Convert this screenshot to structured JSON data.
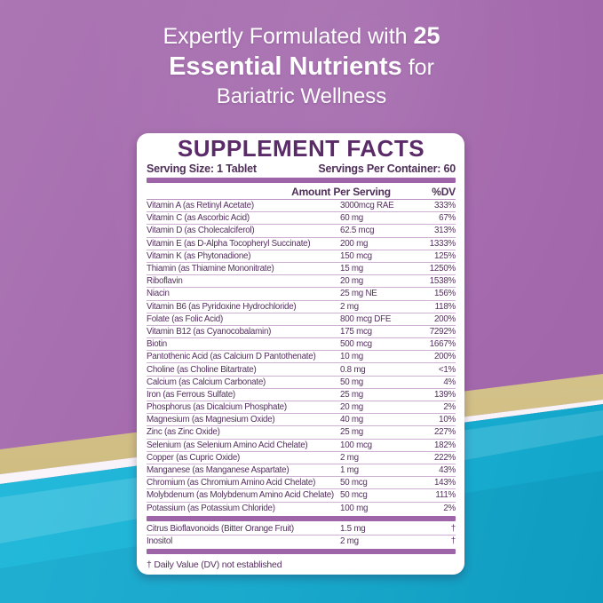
{
  "header": {
    "line1_regular": "Expertly Formulated with ",
    "line1_bold": "25",
    "line2_bold": "Essential Nutrients",
    "line2_regular": " for",
    "line3": "Bariatric Wellness"
  },
  "panel": {
    "title": "SUPPLEMENT FACTS",
    "serving_size": "Serving Size: 1 Tablet",
    "servings_per_container": "Servings Per Container: 60",
    "columns": {
      "amount": "Amount Per Serving",
      "dv": "%DV"
    },
    "nutrients": [
      {
        "name": "Vitamin A (as Retinyl Acetate)",
        "amount": "3000mcg RAE",
        "dv": "333%"
      },
      {
        "name": "Vitamin C (as Ascorbic Acid)",
        "amount": "60 mg",
        "dv": "67%"
      },
      {
        "name": "Vitamin D (as Cholecalciferol)",
        "amount": "62.5 mcg",
        "dv": "313%"
      },
      {
        "name": "Vitamin E (as D-Alpha Tocopheryl Succinate)",
        "amount": "200 mg",
        "dv": "1333%"
      },
      {
        "name": "Vitamin K (as Phytonadione)",
        "amount": "150 mcg",
        "dv": "125%"
      },
      {
        "name": "Thiamin (as Thiamine Mononitrate)",
        "amount": "15 mg",
        "dv": "1250%"
      },
      {
        "name": "Riboflavin",
        "amount": "20 mg",
        "dv": "1538%"
      },
      {
        "name": "Niacin",
        "amount": "25 mg NE",
        "dv": "156%"
      },
      {
        "name": "Vitamin B6 (as Pyridoxine Hydrochloride)",
        "amount": "2 mg",
        "dv": "118%"
      },
      {
        "name": "Folate (as Folic Acid)",
        "amount": "800 mcg DFE",
        "dv": "200%"
      },
      {
        "name": "Vitamin B12 (as Cyanocobalamin)",
        "amount": "175 mcg",
        "dv": "7292%"
      },
      {
        "name": "Biotin",
        "amount": "500 mcg",
        "dv": "1667%"
      },
      {
        "name": "Pantothenic Acid (as Calcium D Pantothenate)",
        "amount": "10 mg",
        "dv": "200%"
      },
      {
        "name": "Choline (as Choline Bitartrate)",
        "amount": "0.8 mg",
        "dv": "<1%"
      },
      {
        "name": "Calcium (as Calcium Carbonate)",
        "amount": "50 mg",
        "dv": "4%"
      },
      {
        "name": "Iron (as Ferrous Sulfate)",
        "amount": "25 mg",
        "dv": "139%"
      },
      {
        "name": "Phosphorus (as Dicalcium Phosphate)",
        "amount": "20 mg",
        "dv": "2%"
      },
      {
        "name": "Magnesium (as Magnesium Oxide)",
        "amount": "40 mg",
        "dv": "10%"
      },
      {
        "name": "Zinc (as Zinc Oxide)",
        "amount": "25 mg",
        "dv": "227%"
      },
      {
        "name": "Selenium (as Selenium Amino Acid Chelate)",
        "amount": "100 mcg",
        "dv": "182%"
      },
      {
        "name": "Copper (as Cupric Oxide)",
        "amount": "2 mg",
        "dv": "222%"
      },
      {
        "name": "Manganese (as Manganese Aspartate)",
        "amount": "1 mg",
        "dv": "43%"
      },
      {
        "name": "Chromium (as Chromium Amino Acid Chelate)",
        "amount": "50 mcg",
        "dv": "143%"
      },
      {
        "name": "Molybdenum (as Molybdenum Amino Acid Chelate)",
        "amount": "50 mcg",
        "dv": "111%"
      },
      {
        "name": "Potassium (as Potassium Chloride)",
        "amount": "100 mg",
        "dv": "2%"
      }
    ],
    "other_ingredients": [
      {
        "name": "Citrus Bioflavonoids (Bitter Orange Fruit)",
        "amount": "1.5 mg",
        "dv": "†"
      },
      {
        "name": "Inositol",
        "amount": "2 mg",
        "dv": "†"
      }
    ],
    "footnote": "† Daily Value (DV) not established"
  },
  "colors": {
    "background_purple": "#a266ab",
    "background_teal": "#1cb2d5",
    "gold_band": "#d5c48c",
    "panel_white": "#ffffff",
    "accent_text_purple": "#5b2a68",
    "bar_purple": "#9d64a7",
    "separator_purple": "#cdb0d2",
    "heading_text": "#ffffff"
  }
}
